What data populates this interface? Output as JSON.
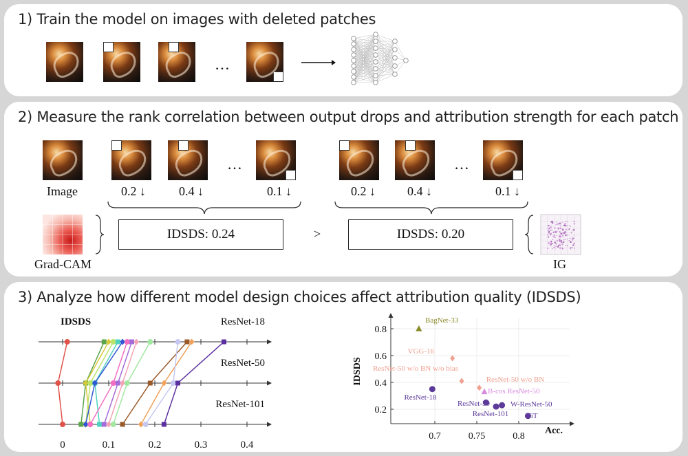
{
  "step1": {
    "title": "1) Train the model on images with deleted patches",
    "ellipsis": "…"
  },
  "step2": {
    "title": "2) Measure the rank correlation between output drops and attribution strength for each patch",
    "image_label": "Image",
    "ellipsis": "…",
    "drops": [
      "0.2 ↓",
      "0.4 ↓",
      "0.1 ↓"
    ],
    "left_box": "IDSDS: 0.24",
    "right_box": "IDSDS: 0.20",
    "compare": ">",
    "left_method": "Grad-CAM",
    "right_method": "IG"
  },
  "step3": {
    "title": "3) Analyze how different model design choices affect attribution quality (IDSDS)"
  },
  "chart_data": [
    {
      "type": "line",
      "title": "IDSDS",
      "rows": [
        "ResNet-18",
        "ResNet-50",
        "ResNet-101"
      ],
      "x_ticks": [
        "0",
        "0.1",
        "0.2",
        "0.3",
        "0.4"
      ],
      "xlim": [
        0,
        0.45
      ],
      "series": [
        {
          "color": "#e0534a",
          "values": [
            0.01,
            -0.01,
            0.0
          ]
        },
        {
          "color": "#5aa44a",
          "values": [
            0.09,
            0.05,
            0.04
          ]
        },
        {
          "color": "#d7c93a",
          "values": [
            0.1,
            0.05,
            0.06
          ]
        },
        {
          "color": "#b9e36a",
          "values": [
            0.11,
            0.06,
            0.05
          ]
        },
        {
          "color": "#4fd1c0",
          "values": [
            0.12,
            0.07,
            0.08
          ]
        },
        {
          "color": "#2f56d6",
          "values": [
            0.13,
            0.07,
            0.05
          ]
        },
        {
          "color": "#f26ec2",
          "values": [
            0.14,
            0.11,
            0.06
          ]
        },
        {
          "color": "#a56bd9",
          "values": [
            0.15,
            0.12,
            0.09
          ]
        },
        {
          "color": "#f4a3b7",
          "values": [
            0.16,
            0.13,
            0.1
          ]
        },
        {
          "color": "#a2e8a0",
          "values": [
            0.19,
            0.14,
            0.11
          ]
        },
        {
          "color": "#9b5a2a",
          "values": [
            0.27,
            0.19,
            0.13
          ]
        },
        {
          "color": "#f0a15a",
          "values": [
            0.28,
            0.22,
            0.17
          ]
        },
        {
          "color": "#c6c8f2",
          "values": [
            0.25,
            0.24,
            0.18
          ]
        },
        {
          "color": "#5c2fa0",
          "values": [
            0.35,
            0.25,
            0.22
          ]
        }
      ]
    },
    {
      "type": "scatter",
      "xlabel": "Acc.",
      "ylabel": "IDSDS",
      "x_ticks": [
        "0.7",
        "0.75",
        "0.8"
      ],
      "y_ticks": [
        "0.2",
        "0.4",
        "0.6",
        "0.8"
      ],
      "xlim": [
        0.65,
        0.84
      ],
      "ylim": [
        0.15,
        0.85
      ],
      "points": [
        {
          "label": "BagNet-33",
          "x": 0.681,
          "y": 0.8,
          "color": "#8a8a2a",
          "marker": "triangle"
        },
        {
          "label": "VGG-16",
          "x": 0.721,
          "y": 0.58,
          "color": "#f0a090",
          "marker": "diamond"
        },
        {
          "label": "ResNet-50 w/o BN w/o bias",
          "x": 0.732,
          "y": 0.41,
          "color": "#f0a090",
          "marker": "diamond"
        },
        {
          "label": "ResNet-50 w/o BN",
          "x": 0.753,
          "y": 0.36,
          "color": "#f0a090",
          "marker": "diamond"
        },
        {
          "label": "B-cos ResNet-50",
          "x": 0.759,
          "y": 0.33,
          "color": "#d98be0",
          "marker": "triangle"
        },
        {
          "label": "ResNet-18",
          "x": 0.697,
          "y": 0.35,
          "color": "#5c3a9a",
          "marker": "circle"
        },
        {
          "label": "ResNet-50",
          "x": 0.761,
          "y": 0.25,
          "color": "#5c3a9a",
          "marker": "circle"
        },
        {
          "label": "ResNet-101",
          "x": 0.773,
          "y": 0.22,
          "color": "#5c3a9a",
          "marker": "circle"
        },
        {
          "label": "W-ResNet-50",
          "x": 0.78,
          "y": 0.23,
          "color": "#5c3a9a",
          "marker": "circle"
        },
        {
          "label": "ViT",
          "x": 0.811,
          "y": 0.15,
          "color": "#5c3a9a",
          "marker": "circle"
        }
      ]
    }
  ]
}
